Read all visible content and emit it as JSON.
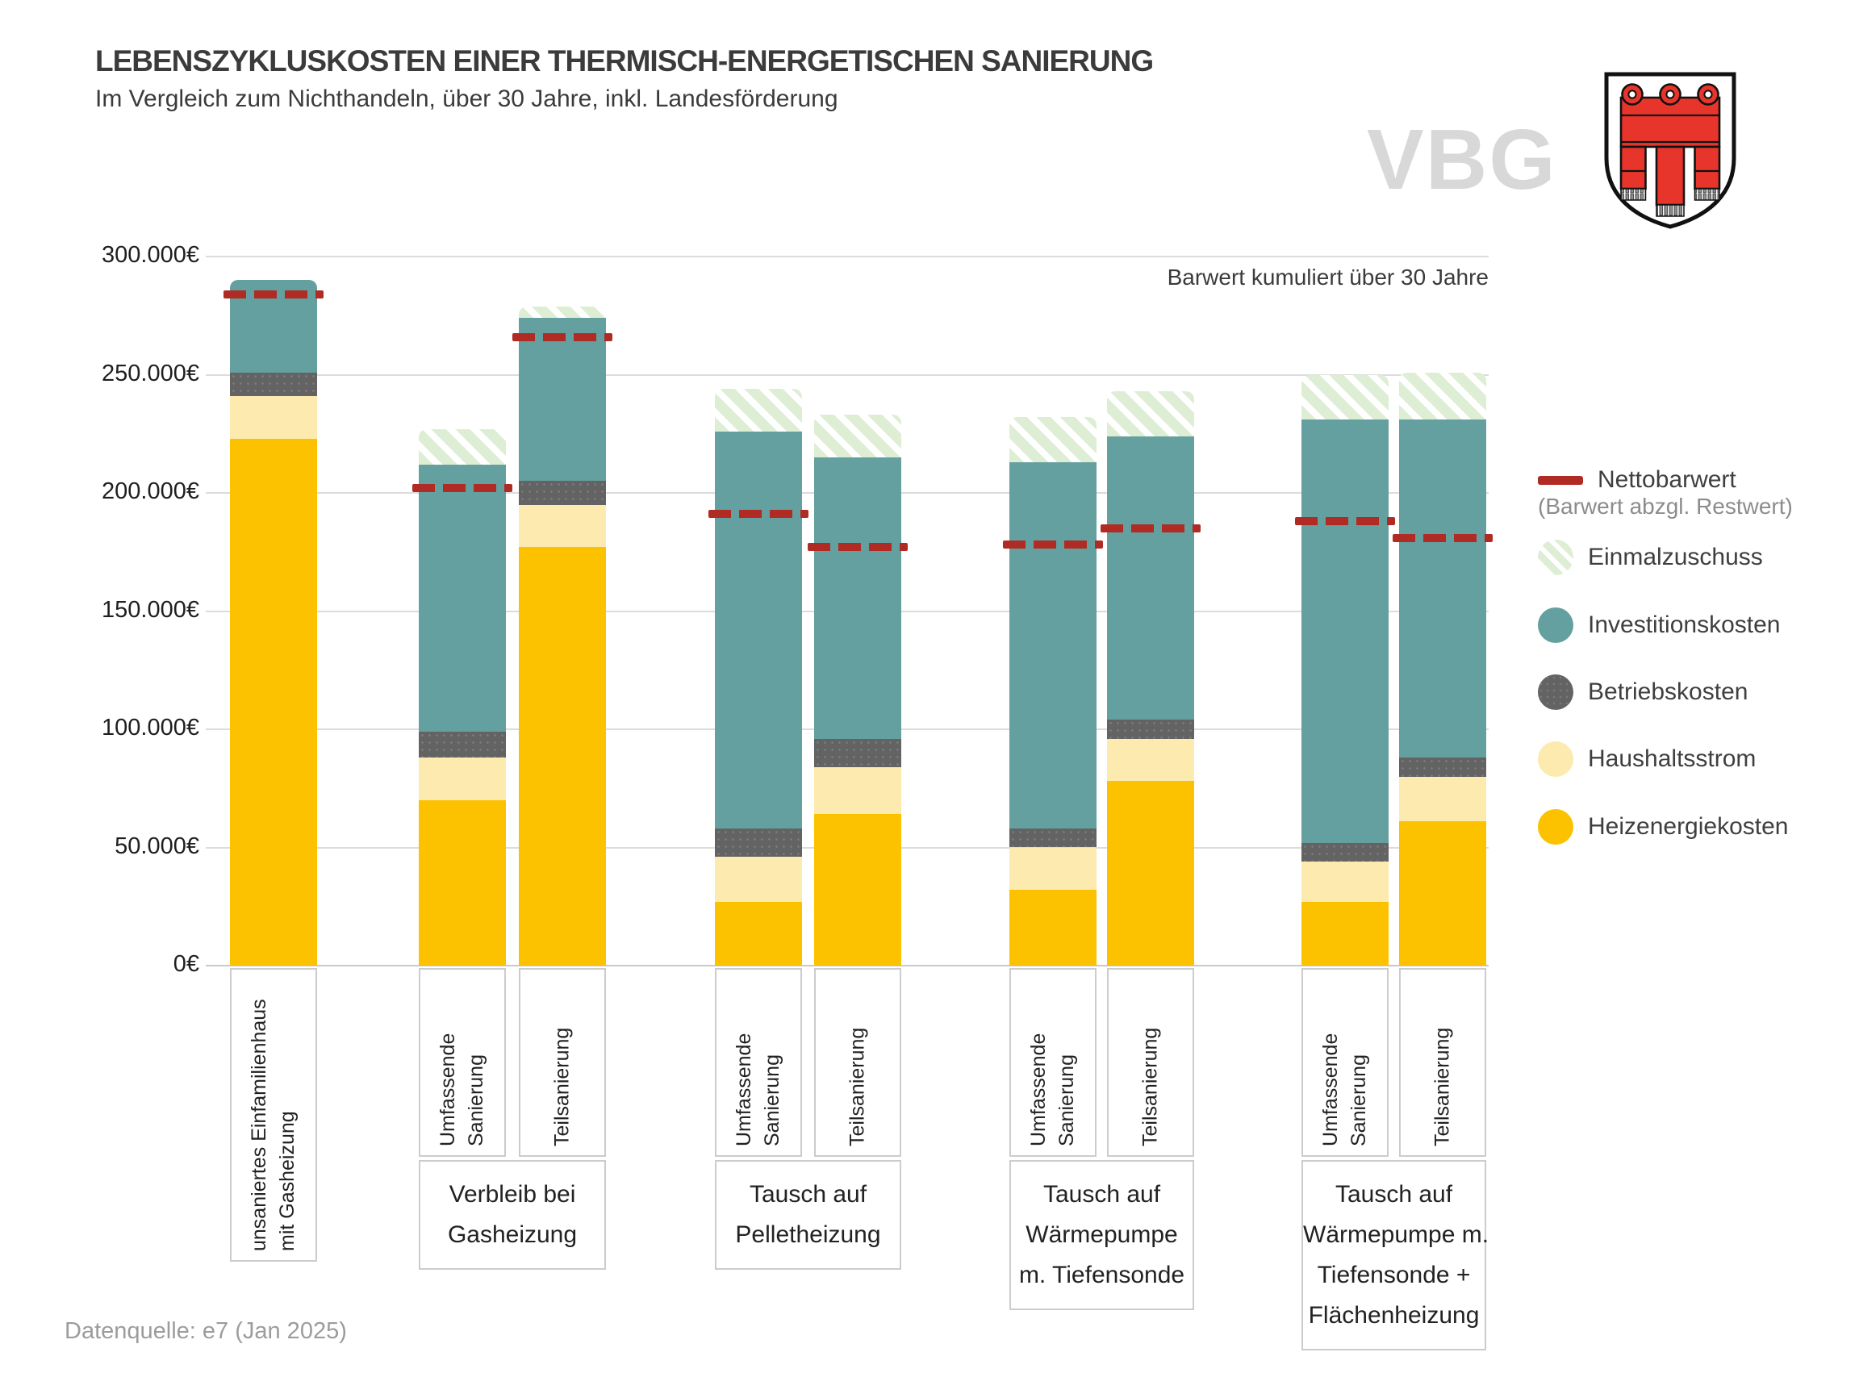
{
  "header": {
    "title": "LEBENSZYKLUSKOSTEN EINER THERMISCH-ENERGETISCHEN SANIERUNG",
    "subtitle": "Im Vergleich zum Nichthandeln, über 30 Jahre, inkl. Landesförderung",
    "watermark": "VBG"
  },
  "chart_data": {
    "type": "bar",
    "stacked": true,
    "unit": "EUR",
    "annotation": "Barwert kumuliert über 30 Jahre",
    "y_axis": {
      "min": 0,
      "max": 300000,
      "grid": true,
      "ticks": [
        {
          "value": 0,
          "label": "0€"
        },
        {
          "value": 50000,
          "label": "50.000€"
        },
        {
          "value": 100000,
          "label": "100.000€"
        },
        {
          "value": 150000,
          "label": "150.000€"
        },
        {
          "value": 200000,
          "label": "200.000€"
        },
        {
          "value": 250000,
          "label": "250.000€"
        },
        {
          "value": 300000,
          "label": "300.000€"
        }
      ]
    },
    "series_order": [
      "heizenergiekosten",
      "haushaltsstrom",
      "betriebskosten",
      "investitionskosten",
      "einmalzuschuss"
    ],
    "series_colors": {
      "heizenergiekosten": "#FCC200",
      "haushaltsstrom": "#FDEAAE",
      "betriebskosten": "#636363",
      "investitionskosten": "#64A09F",
      "einmalzuschuss": "#DEEED4",
      "nettobarwert": "#B02B23"
    },
    "groups": [
      {
        "group_label_lines": [],
        "bars": [
          {
            "label_lines": [
              "unsaniertes Einfamilienhaus",
              "mit Gasheizung"
            ],
            "segments": {
              "heizenergiekosten": 223000,
              "haushaltsstrom": 18000,
              "betriebskosten": 10000,
              "investitionskosten": 39000,
              "einmalzuschuss": 0
            },
            "nettobarwert": 284000
          }
        ]
      },
      {
        "group_label_lines": [
          "Verbleib bei",
          "Gasheizung"
        ],
        "bars": [
          {
            "label_lines": [
              "Umfassende",
              "Sanierung"
            ],
            "segments": {
              "heizenergiekosten": 70000,
              "haushaltsstrom": 18000,
              "betriebskosten": 11000,
              "investitionskosten": 113000,
              "einmalzuschuss": 15000
            },
            "nettobarwert": 202000
          },
          {
            "label_lines": [
              "Teilsanierung"
            ],
            "segments": {
              "heizenergiekosten": 177000,
              "haushaltsstrom": 18000,
              "betriebskosten": 10000,
              "investitionskosten": 69000,
              "einmalzuschuss": 5000
            },
            "nettobarwert": 266000
          }
        ]
      },
      {
        "group_label_lines": [
          "Tausch auf",
          "Pelletheizung"
        ],
        "bars": [
          {
            "label_lines": [
              "Umfassende",
              "Sanierung"
            ],
            "segments": {
              "heizenergiekosten": 27000,
              "haushaltsstrom": 19000,
              "betriebskosten": 12000,
              "investitionskosten": 168000,
              "einmalzuschuss": 18000
            },
            "nettobarwert": 191000
          },
          {
            "label_lines": [
              "Teilsanierung"
            ],
            "segments": {
              "heizenergiekosten": 64000,
              "haushaltsstrom": 20000,
              "betriebskosten": 12000,
              "investitionskosten": 119000,
              "einmalzuschuss": 18000
            },
            "nettobarwert": 177000
          }
        ]
      },
      {
        "group_label_lines": [
          "Tausch auf",
          "Wärmepumpe",
          "m. Tiefensonde"
        ],
        "bars": [
          {
            "label_lines": [
              "Umfassende",
              "Sanierung"
            ],
            "segments": {
              "heizenergiekosten": 32000,
              "haushaltsstrom": 18000,
              "betriebskosten": 8000,
              "investitionskosten": 155000,
              "einmalzuschuss": 19000
            },
            "nettobarwert": 178000
          },
          {
            "label_lines": [
              "Teilsanierung"
            ],
            "segments": {
              "heizenergiekosten": 78000,
              "haushaltsstrom": 18000,
              "betriebskosten": 8000,
              "investitionskosten": 120000,
              "einmalzuschuss": 19000
            },
            "nettobarwert": 185000
          }
        ]
      },
      {
        "group_label_lines": [
          "Tausch auf",
          "Wärmepumpe m.",
          "Tiefensonde  +",
          "Flächenheizung"
        ],
        "bars": [
          {
            "label_lines": [
              "Umfassende",
              "Sanierung"
            ],
            "segments": {
              "heizenergiekosten": 27000,
              "haushaltsstrom": 17000,
              "betriebskosten": 8000,
              "investitionskosten": 179000,
              "einmalzuschuss": 19000
            },
            "nettobarwert": 188000
          },
          {
            "label_lines": [
              "Teilsanierung"
            ],
            "segments": {
              "heizenergiekosten": 61000,
              "haushaltsstrom": 19000,
              "betriebskosten": 8000,
              "investitionskosten": 143000,
              "einmalzuschuss": 20000
            },
            "nettobarwert": 181000
          }
        ]
      }
    ]
  },
  "legend": {
    "nettobarwert": {
      "label": "Nettobarwert",
      "sublabel": "(Barwert abzgl. Restwert)"
    },
    "items": [
      {
        "key": "einmalzuschuss",
        "label": "Einmalzuschuss"
      },
      {
        "key": "investitionskosten",
        "label": "Investitionskosten"
      },
      {
        "key": "betriebskosten",
        "label": "Betriebskosten"
      },
      {
        "key": "haushaltsstrom",
        "label": "Haushaltsstrom"
      },
      {
        "key": "heizenergiekosten",
        "label": "Heizenergiekosten"
      }
    ]
  },
  "footer": {
    "source": "Datenquelle: e7 (Jan 2025)"
  }
}
